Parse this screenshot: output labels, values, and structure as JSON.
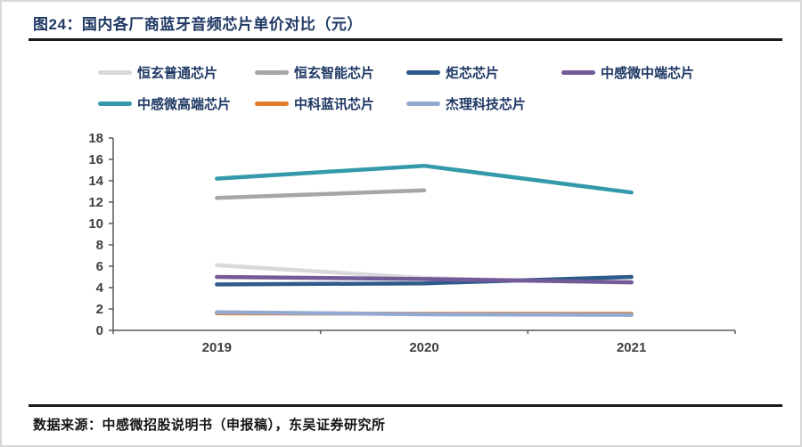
{
  "header": {
    "title": "图24：国内各厂商蓝牙音频芯片单价对比（元）"
  },
  "footer": {
    "source": "数据来源：中感微招股说明书（申报稿），东吴证券研究所"
  },
  "colors": {
    "title_navy": "#1f3864",
    "rule_dark": "#1a1a1a",
    "axis_gray": "#595959",
    "tick_label_gray": "#404040"
  },
  "chart_data": {
    "type": "line",
    "title": "国内各厂商蓝牙音频芯片单价对比（元）",
    "categories": [
      "2019",
      "2020",
      "2021"
    ],
    "series": [
      {
        "name": "恒玄普通芯片",
        "color": "#d9d9d9",
        "values": [
          6.1,
          4.9,
          4.45
        ]
      },
      {
        "name": "恒玄智能芯片",
        "color": "#a6a6a6",
        "values": [
          12.4,
          13.1,
          null
        ]
      },
      {
        "name": "炬芯芯片",
        "color": "#2e5c8a",
        "values": [
          4.3,
          4.4,
          5.0
        ]
      },
      {
        "name": "中感微中端芯片",
        "color": "#755a99",
        "values": [
          5.0,
          4.8,
          4.5
        ]
      },
      {
        "name": "中感微高端芯片",
        "color": "#3399ab",
        "values": [
          14.2,
          15.4,
          12.9
        ]
      },
      {
        "name": "中科蓝讯芯片",
        "color": "#e07e2c",
        "values": [
          1.6,
          1.55,
          1.55
        ]
      },
      {
        "name": "杰理科技芯片",
        "color": "#93a9d1",
        "values": [
          1.7,
          1.5,
          1.45
        ]
      }
    ],
    "xlabel": "",
    "ylabel": "",
    "ylim": [
      0,
      18
    ],
    "ytick_step": 2,
    "grid": false,
    "legend_position": "top"
  }
}
